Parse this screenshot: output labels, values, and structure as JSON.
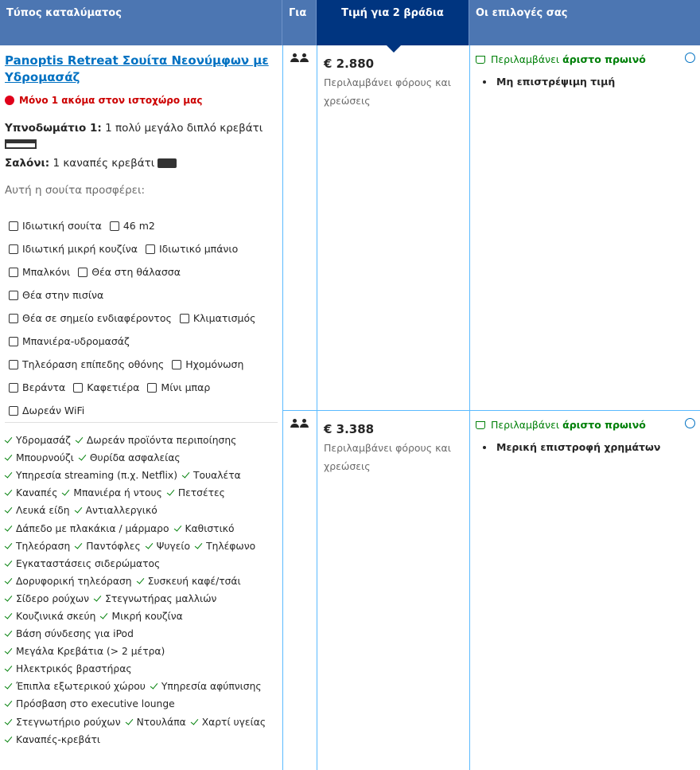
{
  "header": {
    "columns": [
      "Τύπος καταλύματος",
      "Για",
      "Τιμή για 2 βράδια",
      "Οι επιλογές σας"
    ]
  },
  "room": {
    "name": "Panoptis Retreat Σουίτα Νεονύμφων με Υδρομασάζ",
    "availability": "Μόνο 1 ακόμα στον ιστοχώρο μας",
    "beds": [
      {
        "label": "Υπνοδωμάτιο 1:",
        "text": "1 πολύ μεγάλο διπλό κρεβάτι"
      },
      {
        "label": "Σαλόνι:",
        "text": "1 καναπές κρεβάτι"
      }
    ],
    "offers_title": "Αυτή η σουίτα προσφέρει:",
    "facilities": [
      [
        "Ιδιωτική σουίτα",
        "46 m2"
      ],
      [
        "Ιδιωτική μικρή κουζίνα",
        "Ιδιωτικό μπάνιο"
      ],
      [
        "Μπαλκόνι",
        "Θέα στη θάλασσα"
      ],
      [
        "Θέα στην πισίνα"
      ],
      [
        "Θέα σε σημείο ενδιαφέροντος",
        "Κλιματισμός"
      ],
      [
        "Μπανιέρα-υδρομασάζ"
      ],
      [
        "Τηλεόραση επίπεδης οθόνης",
        "Ηχομόνωση"
      ],
      [
        "Βεράντα",
        "Καφετιέρα",
        "Μίνι μπαρ"
      ],
      [
        "Δωρεάν WiFi"
      ]
    ],
    "amenities": [
      [
        "Υδρομασάζ",
        "Δωρεάν προϊόντα περιποίησης"
      ],
      [
        "Μπουρνούζι",
        "Θυρίδα ασφαλείας"
      ],
      [
        "Υπηρεσία streaming (π.χ. Netflix)",
        "Τουαλέτα"
      ],
      [
        "Καναπές",
        "Μπανιέρα ή ντους",
        "Πετσέτες"
      ],
      [
        "Λευκά είδη",
        "Αντιαλλεργικό"
      ],
      [
        "Δάπεδο με πλακάκια / μάρμαρο",
        "Καθιστικό"
      ],
      [
        "Τηλεόραση",
        "Παντόφλες",
        "Ψυγείο",
        "Τηλέφωνο"
      ],
      [
        "Εγκαταστάσεις σιδερώματος"
      ],
      [
        "Δορυφορική τηλεόραση",
        "Συσκευή καφέ/τσάι"
      ],
      [
        "Σίδερο ρούχων",
        "Στεγνωτήρας μαλλιών"
      ],
      [
        "Κουζινικά σκεύη",
        "Μικρή κουζίνα"
      ],
      [
        "Βάση σύνδεσης για iPod"
      ],
      [
        "Μεγάλα Κρεβάτια (> 2 μέτρα)"
      ],
      [
        "Ηλεκτρικός βραστήρας"
      ],
      [
        "Έπιπλα εξωτερικού χώρου",
        "Υπηρεσία αφύπνισης"
      ],
      [
        "Πρόσβαση στο executive lounge"
      ],
      [
        "Στεγνωτήριο ρούχων",
        "Ντουλάπα",
        "Χαρτί υγείας"
      ],
      [
        "Καναπές-κρεβάτι"
      ]
    ]
  },
  "options": [
    {
      "price": "€ 2.880",
      "price_note": "Περιλαμβάνει φόρους και χρεώσεις",
      "breakfast_prefix": "Περιλαμβάνει",
      "breakfast_bold": "άριστο πρωινό",
      "condition": "Μη επιστρέψιμη τιμή"
    },
    {
      "price": "€ 3.388",
      "price_note": "Περιλαμβάνει φόρους και χρεώσεις",
      "breakfast_prefix": "Περιλαμβάνει",
      "breakfast_bold": "άριστο πρωινό",
      "condition": "Μερική επιστροφή χρημάτων"
    }
  ]
}
